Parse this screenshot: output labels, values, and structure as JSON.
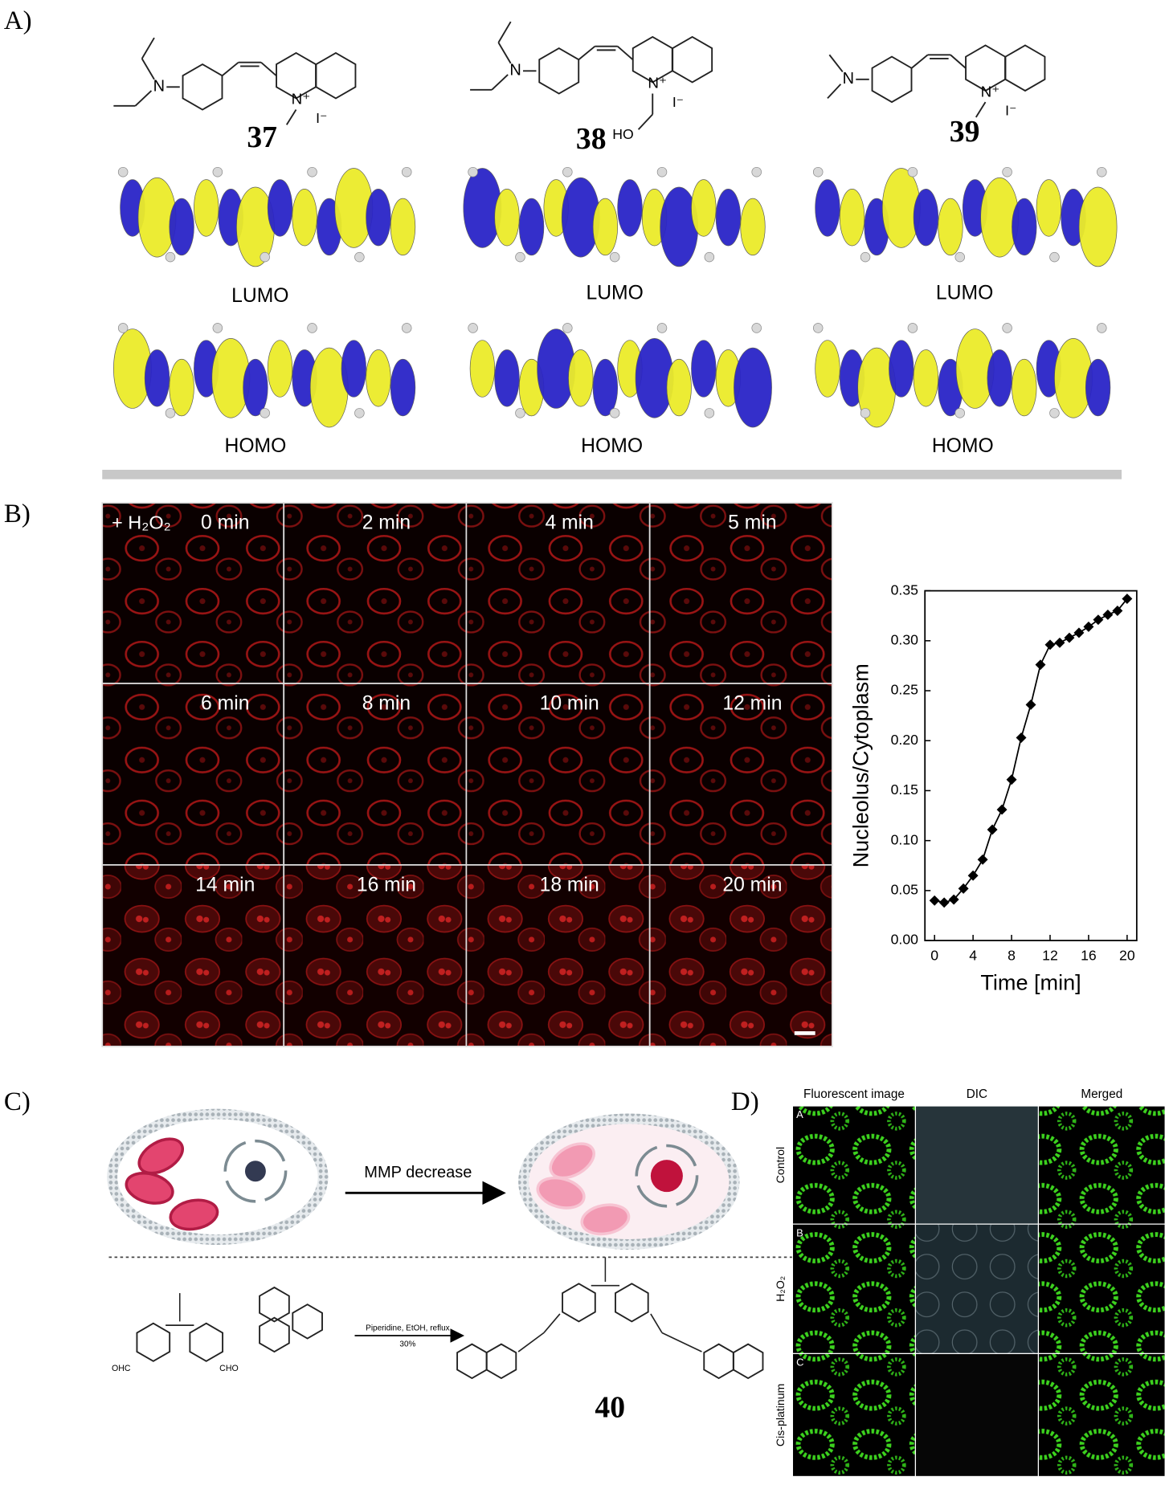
{
  "figure": {
    "panel_a": {
      "label": "A)",
      "compounds": [
        {
          "number": "37",
          "amine_n": "N",
          "cation_n": "N⁺",
          "anion": "I⁻",
          "lumo": "LUMO",
          "homo": "HOMO"
        },
        {
          "number": "38",
          "amine_n": "N",
          "cation_n": "N⁺",
          "anion": "I⁻",
          "hydroxyl": "HO",
          "lumo": "LUMO",
          "homo": "HOMO"
        },
        {
          "number": "39",
          "amine_n": "N",
          "cation_n": "N⁺",
          "anion": "I⁻",
          "lumo": "LUMO",
          "homo": "HOMO"
        }
      ]
    },
    "panel_b": {
      "label": "B)",
      "treatment": "+ H₂O₂",
      "frames": [
        "0 min",
        "2 min",
        "4 min",
        "5 min",
        "6 min",
        "8 min",
        "10 min",
        "12 min",
        "14 min",
        "16 min",
        "18 min",
        "20 min"
      ]
    },
    "panel_c": {
      "label": "C)",
      "process": "MMP decrease",
      "aldehyde_left": "OHC",
      "aldehyde_right": "CHO",
      "conditions": "Piperidine, EtOH, reflux",
      "yield": "30%",
      "product": "40"
    },
    "panel_d": {
      "label": "D)",
      "columns": [
        "Fluorescent image",
        "DIC",
        "Merged"
      ],
      "rows": [
        {
          "letter": "A",
          "label": "Control"
        },
        {
          "letter": "B",
          "label": "H₂O₂"
        },
        {
          "letter": "C",
          "label": "Cis-platinum"
        }
      ]
    }
  },
  "chart_data": {
    "type": "line",
    "marker": "diamond",
    "color": "#000000",
    "x": [
      0,
      1,
      2,
      3,
      4,
      5,
      6,
      7,
      8,
      9,
      10,
      11,
      12,
      13,
      14,
      15,
      16,
      17,
      18,
      19,
      20
    ],
    "values": [
      0.04,
      0.038,
      0.041,
      0.052,
      0.065,
      0.081,
      0.111,
      0.131,
      0.161,
      0.203,
      0.236,
      0.276,
      0.296,
      0.298,
      0.303,
      0.308,
      0.314,
      0.321,
      0.326,
      0.33,
      0.342
    ],
    "xlabel": "Time [min]",
    "ylabel": "Nucleolus/Cytoplasm",
    "xlim": [
      -1,
      21
    ],
    "ylim": [
      0,
      0.35
    ],
    "xticks": [
      0,
      4,
      8,
      12,
      16,
      20
    ],
    "yticks": [
      {
        "value": 0,
        "label": "0.00"
      },
      {
        "value": 0.05,
        "label": "0.05"
      },
      {
        "value": 0.1,
        "label": "0.10"
      },
      {
        "value": 0.15,
        "label": "0.15"
      },
      {
        "value": 0.2,
        "label": "0.20"
      },
      {
        "value": 0.25,
        "label": "0.25"
      },
      {
        "value": 0.3,
        "label": "0.30"
      },
      {
        "value": 0.35,
        "label": "0.35"
      }
    ]
  }
}
